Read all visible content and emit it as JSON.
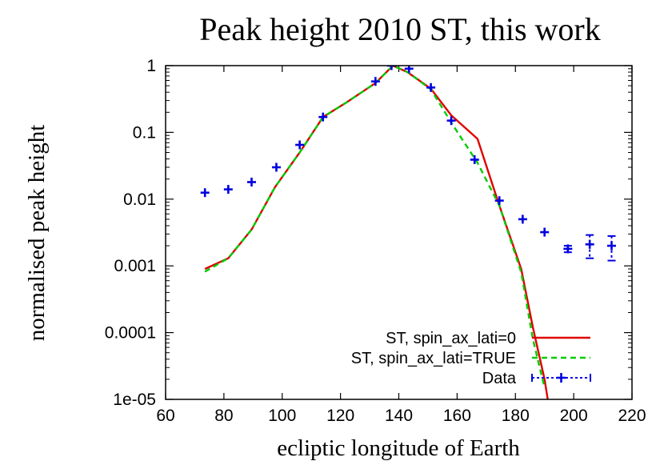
{
  "chart_data": {
    "type": "line",
    "title": "Peak height 2010 ST, this work",
    "xlabel": "ecliptic longitude of Earth",
    "ylabel": "normalised peak height",
    "xlim": [
      60,
      220
    ],
    "ylim": [
      1e-05,
      1
    ],
    "yscale": "log",
    "grid": false,
    "legend_position": "bottom-right",
    "x_ticks": [
      60,
      80,
      100,
      120,
      140,
      160,
      180,
      200,
      220
    ],
    "x_tick_labels": [
      "60",
      "80",
      "100",
      "120",
      "140",
      "160",
      "180",
      "200",
      "220"
    ],
    "y_ticks": [
      1,
      0.1,
      0.01,
      0.001,
      0.0001,
      1e-05
    ],
    "y_tick_labels": [
      "1",
      "0.1",
      "0.01",
      "0.001",
      "0.0001",
      "1e-05"
    ],
    "series": [
      {
        "name": "ST, spin_ax_lati=0",
        "kind": "line",
        "color": "#e00000",
        "dash": "solid",
        "x": [
          73.5,
          81.5,
          89.5,
          97.5,
          106,
          114,
          122,
          132,
          138,
          143,
          151,
          158,
          167,
          174.5,
          182,
          186,
          190,
          193
        ],
        "y": [
          0.0009,
          0.0013,
          0.0035,
          0.015,
          0.05,
          0.17,
          0.28,
          0.55,
          1.0,
          0.8,
          0.45,
          0.18,
          0.08,
          0.008,
          0.0009,
          0.00012,
          2e-05,
          3e-06
        ]
      },
      {
        "name": "ST, spin_ax_lati=TRUE",
        "kind": "line",
        "color": "#00cc00",
        "dash": "dashed",
        "x": [
          73.5,
          81.5,
          89.5,
          97.5,
          106,
          114,
          122,
          132,
          138,
          143,
          151,
          158,
          167,
          174.5,
          182,
          186,
          190
        ],
        "y": [
          0.00082,
          0.0013,
          0.0035,
          0.015,
          0.05,
          0.17,
          0.28,
          0.55,
          1.0,
          0.8,
          0.44,
          0.14,
          0.035,
          0.008,
          0.0008,
          8e-05,
          1.5e-05
        ]
      },
      {
        "name": "Data",
        "kind": "errorbar",
        "color": "#0000e0",
        "x": [
          73.5,
          81.5,
          89.5,
          98,
          106,
          114,
          132,
          137.5,
          143.5,
          151,
          158,
          166,
          174.5,
          182.5,
          190,
          198,
          205.5,
          213
        ],
        "y": [
          0.0125,
          0.014,
          0.018,
          0.03,
          0.065,
          0.17,
          0.58,
          1.0,
          0.9,
          0.47,
          0.15,
          0.039,
          0.0095,
          0.005,
          0.0032,
          0.0018,
          0.0021,
          0.002
        ],
        "y_low": [
          0.0115,
          0.013,
          0.0167,
          0.028,
          0.061,
          0.16,
          0.55,
          0.96,
          0.86,
          0.45,
          0.142,
          0.036,
          0.0088,
          0.0045,
          0.0029,
          0.0016,
          0.0013,
          0.0012
        ],
        "y_high": [
          0.0135,
          0.015,
          0.0193,
          0.032,
          0.069,
          0.18,
          0.61,
          1.04,
          0.94,
          0.49,
          0.158,
          0.042,
          0.0102,
          0.0055,
          0.0035,
          0.002,
          0.0029,
          0.0028
        ]
      }
    ]
  }
}
